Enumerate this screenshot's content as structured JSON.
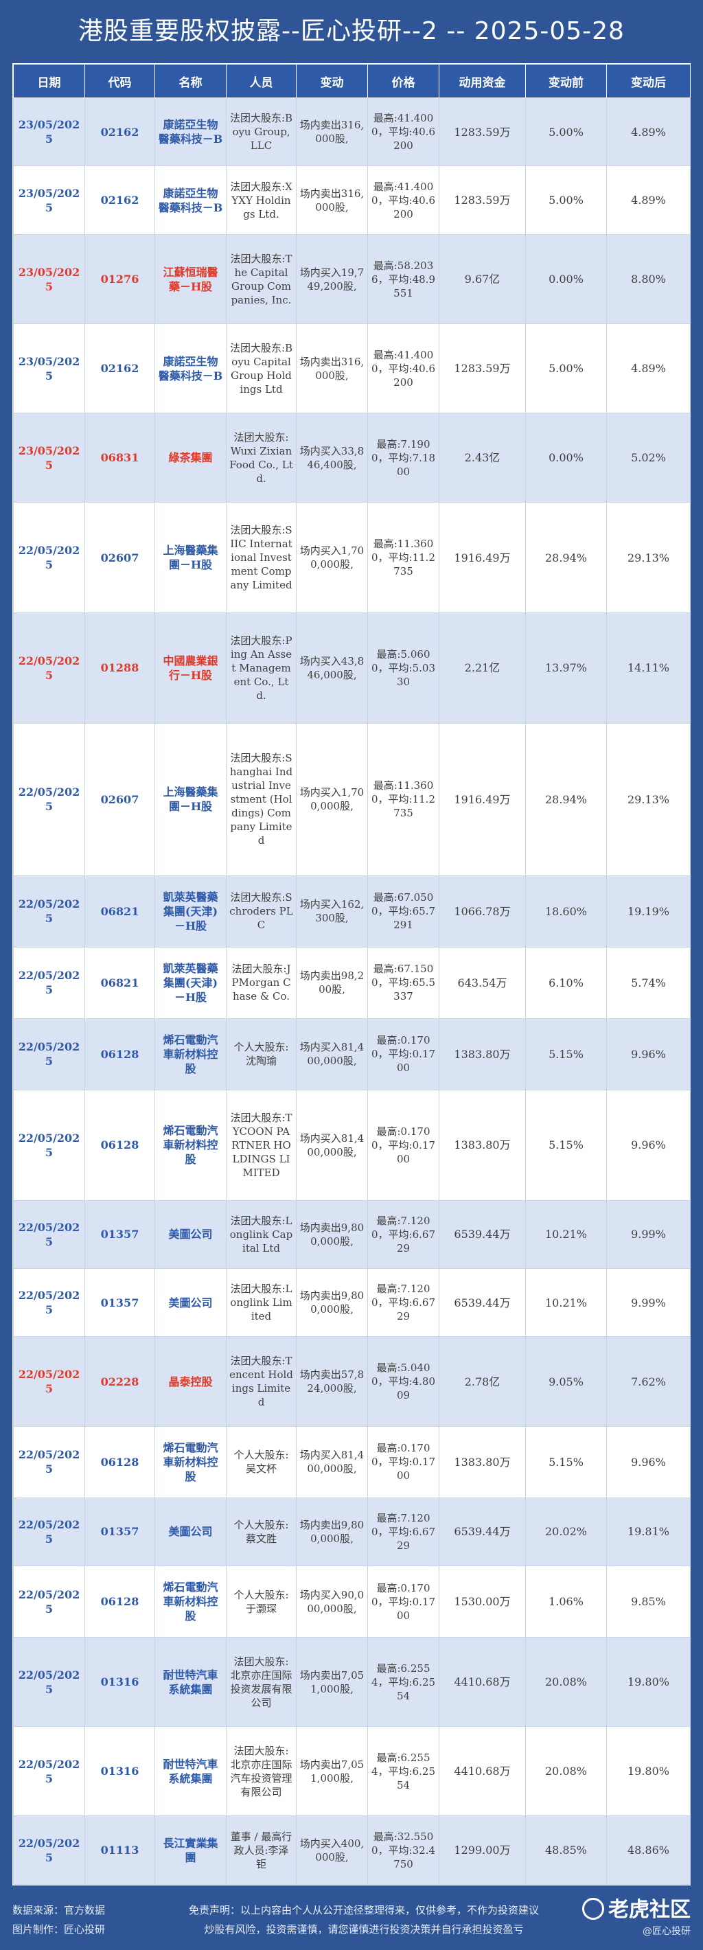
{
  "title": "港股重要股权披露--匠心投研--2 -- 2025-05-28",
  "table": {
    "headers": [
      "日期",
      "代码",
      "名称",
      "人员",
      "变动",
      "价格",
      "动用资金",
      "变动前",
      "变动后"
    ],
    "rows": [
      {
        "date": "23/05/2025",
        "code": "02162",
        "name": "康諾亞生物醫藥科技－B",
        "person": "法团大股东:Boyu Group, LLC",
        "change": "场内卖出316,000股,",
        "price": "最高:41.4000，平均:40.6200",
        "fund": "1283.59万",
        "before": "5.00%",
        "after": "4.89%",
        "highlight": false
      },
      {
        "date": "23/05/2025",
        "code": "02162",
        "name": "康諾亞生物醫藥科技－B",
        "person": "法团大股东:XYXY Holdings Ltd.",
        "change": "场内卖出316,000股,",
        "price": "最高:41.4000，平均:40.6200",
        "fund": "1283.59万",
        "before": "5.00%",
        "after": "4.89%",
        "highlight": false
      },
      {
        "date": "23/05/2025",
        "code": "01276",
        "name": "江蘇恒瑞醫藥－H股",
        "person": "法团大股东:The Capital Group Companies, Inc.",
        "change": "场内买入19,749,200股,",
        "price": "最高:58.2036，平均:48.9551",
        "fund": "9.67亿",
        "before": "0.00%",
        "after": "8.80%",
        "highlight": true
      },
      {
        "date": "23/05/2025",
        "code": "02162",
        "name": "康諾亞生物醫藥科技－B",
        "person": "法团大股东:Boyu Capital Group Holdings Ltd",
        "change": "场内卖出316,000股,",
        "price": "最高:41.4000，平均:40.6200",
        "fund": "1283.59万",
        "before": "5.00%",
        "after": "4.89%",
        "highlight": false
      },
      {
        "date": "23/05/2025",
        "code": "06831",
        "name": "綠茶集團",
        "person": "法团大股东:Wuxi Zixian Food Co., Ltd.",
        "change": "场内买入33,846,400股,",
        "price": "最高:7.1900，平均:7.1800",
        "fund": "2.43亿",
        "before": "0.00%",
        "after": "5.02%",
        "highlight": true
      },
      {
        "date": "22/05/2025",
        "code": "02607",
        "name": "上海醫藥集團－H股",
        "person": "法团大股东:SIIC International Investment Company Limited",
        "change": "场内买入1,700,000股,",
        "price": "最高:11.3600，平均:11.2735",
        "fund": "1916.49万",
        "before": "28.94%",
        "after": "29.13%",
        "highlight": false
      },
      {
        "date": "22/05/2025",
        "code": "01288",
        "name": "中國農業銀行－H股",
        "person": "法团大股东:Ping An Asset Management Co., Ltd.",
        "change": "场内买入43,846,000股,",
        "price": "最高:5.0600，平均:5.0330",
        "fund": "2.21亿",
        "before": "13.97%",
        "after": "14.11%",
        "highlight": true
      },
      {
        "date": "22/05/2025",
        "code": "02607",
        "name": "上海醫藥集團－H股",
        "person": "法团大股东:Shanghai Industrial Investment (Holdings) Company Limited",
        "change": "场内买入1,700,000股,",
        "price": "最高:11.3600，平均:11.2735",
        "fund": "1916.49万",
        "before": "28.94%",
        "after": "29.13%",
        "highlight": false
      },
      {
        "date": "22/05/2025",
        "code": "06821",
        "name": "凱萊英醫藥集團(天津)－H股",
        "person": "法团大股东:Schroders PLC",
        "change": "场内买入162,300股,",
        "price": "最高:67.0500，平均:65.7291",
        "fund": "1066.78万",
        "before": "18.60%",
        "after": "19.19%",
        "highlight": false
      },
      {
        "date": "22/05/2025",
        "code": "06821",
        "name": "凱萊英醫藥集團(天津)－H股",
        "person": "法团大股东:JPMorgan Chase & Co.",
        "change": "场内卖出98,200股,",
        "price": "最高:67.1500，平均:65.5337",
        "fund": "643.54万",
        "before": "6.10%",
        "after": "5.74%",
        "highlight": false
      },
      {
        "date": "22/05/2025",
        "code": "06128",
        "name": "烯石電動汽車新材料控股",
        "person": "个人大股东:沈陶瑜",
        "change": "场内买入81,400,000股,",
        "price": "最高:0.1700，平均:0.1700",
        "fund": "1383.80万",
        "before": "5.15%",
        "after": "9.96%",
        "highlight": false
      },
      {
        "date": "22/05/2025",
        "code": "06128",
        "name": "烯石電動汽車新材料控股",
        "person": "法团大股东:TYCOON PARTNER HOLDINGS LIMITED",
        "change": "场内买入81,400,000股,",
        "price": "最高:0.1700，平均:0.1700",
        "fund": "1383.80万",
        "before": "5.15%",
        "after": "9.96%",
        "highlight": false
      },
      {
        "date": "22/05/2025",
        "code": "01357",
        "name": "美圖公司",
        "person": "法团大股东:Longlink Capital Ltd",
        "change": "场内卖出9,800,000股,",
        "price": "最高:7.1200，平均:6.6729",
        "fund": "6539.44万",
        "before": "10.21%",
        "after": "9.99%",
        "highlight": false
      },
      {
        "date": "22/05/2025",
        "code": "01357",
        "name": "美圖公司",
        "person": "法团大股东:Longlink Limited",
        "change": "场内卖出9,800,000股,",
        "price": "最高:7.1200，平均:6.6729",
        "fund": "6539.44万",
        "before": "10.21%",
        "after": "9.99%",
        "highlight": false
      },
      {
        "date": "22/05/2025",
        "code": "02228",
        "name": "晶泰控股",
        "person": "法团大股东:Tencent Holdings Limited",
        "change": "场内卖出57,824,000股,",
        "price": "最高:5.0400，平均:4.8009",
        "fund": "2.78亿",
        "before": "9.05%",
        "after": "7.62%",
        "highlight": true
      },
      {
        "date": "22/05/2025",
        "code": "06128",
        "name": "烯石電動汽車新材料控股",
        "person": "个人大股东:吴文杯",
        "change": "场内买入81,400,000股,",
        "price": "最高:0.1700，平均:0.1700",
        "fund": "1383.80万",
        "before": "5.15%",
        "after": "9.96%",
        "highlight": false
      },
      {
        "date": "22/05/2025",
        "code": "01357",
        "name": "美圖公司",
        "person": "个人大股东:蔡文胜",
        "change": "场内卖出9,800,000股,",
        "price": "最高:7.1200，平均:6.6729",
        "fund": "6539.44万",
        "before": "20.02%",
        "after": "19.81%",
        "highlight": false
      },
      {
        "date": "22/05/2025",
        "code": "06128",
        "name": "烯石電動汽車新材料控股",
        "person": "个人大股东:于灏琛",
        "change": "场内买入90,000,000股,",
        "price": "最高:0.1700，平均:0.1700",
        "fund": "1530.00万",
        "before": "1.06%",
        "after": "9.85%",
        "highlight": false
      },
      {
        "date": "22/05/2025",
        "code": "01316",
        "name": "耐世特汽車系統集團",
        "person": "法团大股东:北京亦庄国际投资发展有限公司",
        "change": "场内卖出7,051,000股,",
        "price": "最高:6.2554，平均:6.2554",
        "fund": "4410.68万",
        "before": "20.08%",
        "after": "19.80%",
        "highlight": false
      },
      {
        "date": "22/05/2025",
        "code": "01316",
        "name": "耐世特汽車系統集團",
        "person": "法团大股东:北京亦庄国际汽车投资管理有限公司",
        "change": "场内卖出7,051,000股,",
        "price": "最高:6.2554，平均:6.2554",
        "fund": "4410.68万",
        "before": "20.08%",
        "after": "19.80%",
        "highlight": false
      },
      {
        "date": "22/05/2025",
        "code": "01113",
        "name": "長江實業集團",
        "person": "董事 / 最高行政人员:李泽钜",
        "change": "场内买入400,000股,",
        "price": "最高:32.5500，平均:32.4750",
        "fund": "1299.00万",
        "before": "48.85%",
        "after": "48.86%",
        "highlight": false
      }
    ]
  },
  "footer": {
    "source": "数据来源：官方数据",
    "maker": "图片制作：匠心投研",
    "disclaimer1": "免责声明：以上内容由个人从公开途径整理得来，仅供参考，不作为投资建议",
    "disclaimer2": "炒股有风险，投资需谨慎，请您谨慎进行投资决策并自行承担投资盈亏",
    "logo": "老虎社区",
    "handle": "@匠心投研"
  }
}
